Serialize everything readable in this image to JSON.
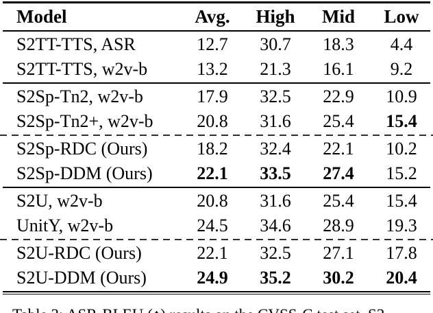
{
  "table": {
    "columns": [
      "Model",
      "Avg.",
      "High",
      "Mid",
      "Low"
    ],
    "groups": [
      {
        "divider_after": "solid",
        "rows": [
          {
            "model": "S2TT-TTS, ASR",
            "values": [
              "12.7",
              "30.7",
              "18.3",
              "4.4"
            ],
            "bold": []
          },
          {
            "model": "S2TT-TTS, w2v-b",
            "values": [
              "13.2",
              "21.3",
              "16.1",
              "9.2"
            ],
            "bold": []
          }
        ]
      },
      {
        "divider_after": "dashed",
        "rows": [
          {
            "model": "S2Sp-Tn2, w2v-b",
            "values": [
              "17.9",
              "32.5",
              "22.9",
              "10.9"
            ],
            "bold": []
          },
          {
            "model": "S2Sp-Tn2+, w2v-b",
            "values": [
              "20.8",
              "31.6",
              "25.4",
              "15.4"
            ],
            "bold": [
              3
            ]
          }
        ]
      },
      {
        "divider_after": "solid",
        "rows": [
          {
            "model": "S2Sp-RDC (Ours)",
            "values": [
              "18.2",
              "32.4",
              "22.1",
              "10.2"
            ],
            "bold": []
          },
          {
            "model": "S2Sp-DDM (Ours)",
            "values": [
              "22.1",
              "33.5",
              "27.4",
              "15.2"
            ],
            "bold": [
              0,
              1,
              2
            ]
          }
        ]
      },
      {
        "divider_after": "dashed",
        "rows": [
          {
            "model": "S2U, w2v-b",
            "values": [
              "20.8",
              "31.6",
              "25.4",
              "15.4"
            ],
            "bold": []
          },
          {
            "model": "UnitY, w2v-b",
            "values": [
              "24.5",
              "34.6",
              "28.9",
              "19.3"
            ],
            "bold": []
          }
        ]
      },
      {
        "divider_after": "double",
        "rows": [
          {
            "model": "S2U-RDC (Ours)",
            "values": [
              "22.1",
              "32.5",
              "27.1",
              "17.8"
            ],
            "bold": []
          },
          {
            "model": "S2U-DDM (Ours)",
            "values": [
              "24.9",
              "35.2",
              "30.2",
              "20.4"
            ],
            "bold": [
              0,
              1,
              2,
              3
            ]
          }
        ]
      }
    ]
  },
  "caption": "Table 3: ASR-BLEU (↑) results on the CVSS-C test set. S2"
}
